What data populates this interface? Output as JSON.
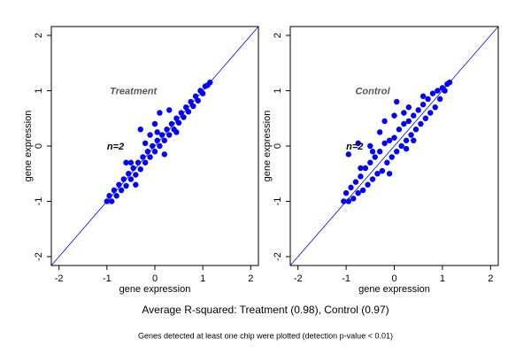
{
  "chart_data": [
    {
      "type": "scatter",
      "title": "Treatment",
      "annotation": "n=2",
      "x_label": "gene expression",
      "y_label": "gene expression",
      "color": "#0000ff",
      "identity_line": true,
      "xlim": [
        -2.16,
        2.16
      ],
      "ylim": [
        -2.16,
        2.16
      ],
      "xticks": [
        -2,
        -1,
        0,
        1,
        2
      ],
      "yticks": [
        -2,
        -1,
        0,
        1,
        2
      ],
      "x": [
        -1.0,
        -0.95,
        -0.9,
        -0.85,
        -0.8,
        -0.75,
        -0.7,
        -0.65,
        -0.6,
        -0.55,
        -0.5,
        -0.45,
        -0.4,
        -0.35,
        -0.3,
        -0.25,
        -0.2,
        -0.15,
        -0.1,
        -0.05,
        0.0,
        0.05,
        0.1,
        0.15,
        0.2,
        0.25,
        0.3,
        0.35,
        0.4,
        0.45,
        0.5,
        0.55,
        0.6,
        0.65,
        0.7,
        0.75,
        0.8,
        0.85,
        0.9,
        0.95,
        1.0,
        1.05,
        1.1,
        1.15,
        -0.3,
        0.1,
        -0.6,
        0.0,
        0.3,
        -0.1,
        0.2,
        -0.4,
        -0.2,
        0.05,
        0.45,
        -0.5
      ],
      "y": [
        -1.0,
        -0.9,
        -1.0,
        -0.8,
        -0.9,
        -0.7,
        -0.8,
        -0.6,
        -0.72,
        -0.5,
        -0.6,
        -0.4,
        -0.52,
        -0.3,
        -0.42,
        -0.2,
        -0.3,
        -0.1,
        -0.2,
        0.0,
        -0.1,
        0.1,
        0.0,
        0.2,
        0.1,
        0.3,
        0.2,
        0.4,
        0.3,
        0.5,
        0.42,
        0.6,
        0.52,
        0.7,
        0.62,
        0.8,
        0.72,
        0.9,
        0.82,
        1.0,
        0.95,
        1.08,
        1.1,
        1.15,
        0.3,
        0.6,
        -0.3,
        0.4,
        0.65,
        0.2,
        -0.15,
        -0.7,
        0.05,
        0.25,
        0.25,
        -0.3
      ]
    },
    {
      "type": "scatter",
      "title": "Control",
      "annotation": "n=2",
      "x_label": "gene expression",
      "y_label": "gene expression",
      "color": "#0000ff",
      "identity_line": true,
      "xlim": [
        -2.16,
        2.16
      ],
      "ylim": [
        -2.16,
        2.16
      ],
      "xticks": [
        -2,
        -1,
        0,
        1,
        2
      ],
      "yticks": [
        -2,
        -1,
        0,
        1,
        2
      ],
      "x": [
        -1.05,
        -1.0,
        -0.95,
        -0.9,
        -0.85,
        -0.8,
        -0.75,
        -0.7,
        -0.65,
        -0.6,
        -0.55,
        -0.5,
        -0.45,
        -0.4,
        -0.35,
        -0.3,
        -0.25,
        -0.2,
        -0.15,
        -0.1,
        -0.05,
        0.0,
        0.05,
        0.1,
        0.15,
        0.2,
        0.25,
        0.3,
        0.35,
        0.4,
        0.45,
        0.5,
        0.55,
        0.6,
        0.65,
        0.7,
        0.75,
        0.8,
        0.85,
        0.9,
        0.95,
        1.0,
        1.05,
        1.1,
        1.15,
        -0.2,
        -0.95,
        -0.75,
        0.05,
        -0.5,
        -0.3,
        0.2,
        0.4,
        -0.7,
        0.6,
        -0.1,
        0.25,
        -0.45,
        0.0,
        0.3
      ],
      "y": [
        -1.0,
        -0.85,
        -1.0,
        -0.75,
        -0.95,
        -0.65,
        -0.85,
        -0.55,
        -0.8,
        -0.4,
        -0.7,
        -0.3,
        -0.6,
        -0.2,
        -0.5,
        -0.1,
        -0.45,
        0.05,
        -0.3,
        0.1,
        -0.2,
        0.15,
        -0.1,
        0.3,
        0.0,
        0.4,
        0.1,
        0.45,
        0.2,
        0.55,
        0.3,
        0.65,
        0.4,
        0.75,
        0.5,
        0.85,
        0.6,
        0.95,
        0.7,
        1.0,
        0.85,
        1.05,
        1.0,
        1.12,
        1.15,
        0.45,
        -0.15,
        0.05,
        0.8,
        0.0,
        0.25,
        0.6,
        0.1,
        -0.4,
        0.9,
        -0.5,
        -0.05,
        -0.1,
        0.55,
        0.7
      ]
    }
  ],
  "caption": "Average R-squared: Treatment (0.98), Control (0.97)",
  "footnote": "Genes detected at least one chip were plotted (detection p-value < 0.01)"
}
